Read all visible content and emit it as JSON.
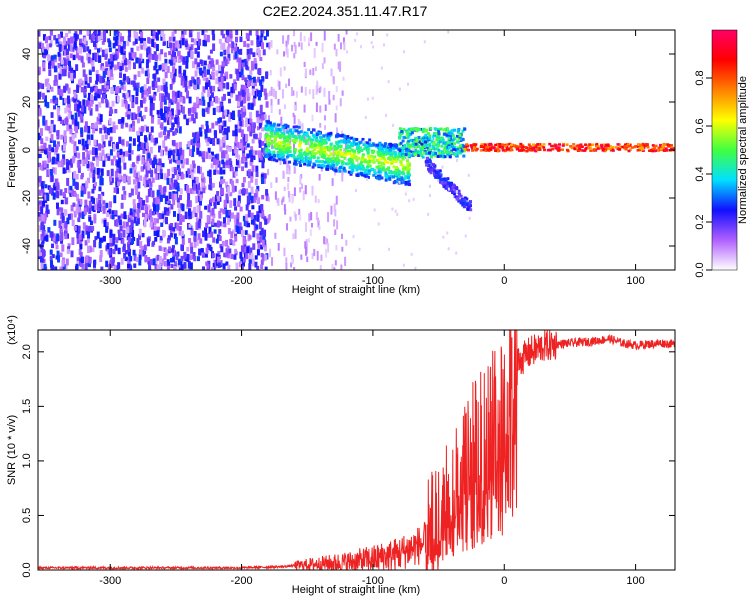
{
  "title": "C2E2.2024.351.11.47.R17",
  "chart_data": [
    {
      "type": "heatmap",
      "xlabel": "Height of straight line (km)",
      "ylabel": "Frequency (Hz)",
      "xlim": [
        -355,
        130
      ],
      "ylim": [
        -50,
        50
      ],
      "xticks": [
        -300,
        -200,
        -100,
        0,
        100
      ],
      "yticks": [
        -40,
        -20,
        0,
        20,
        40
      ],
      "colorbar": {
        "label": "Normalized spectral amplitude",
        "range": [
          0,
          1
        ],
        "ticks": [
          "0.0",
          "0.2",
          "0.4",
          "0.6",
          "0.8"
        ],
        "colors": [
          "#ffffff",
          "#b060ff",
          "#1010ff",
          "#00e0ff",
          "#40ff40",
          "#ffff00",
          "#ff8000",
          "#ff0000",
          "#ff0066"
        ]
      },
      "regions": [
        {
          "x_range": [
            -355,
            -180
          ],
          "y_range": [
            -50,
            50
          ],
          "level": 0.25
        },
        {
          "x_range": [
            -180,
            -125
          ],
          "y_range": [
            -50,
            50
          ],
          "level": 0.08
        },
        {
          "x_range": [
            -180,
            -80
          ],
          "y_center": [
            4,
            -8
          ],
          "level": 0.55
        },
        {
          "x_range": [
            -80,
            -30
          ],
          "y_center": [
            3,
            -20
          ],
          "level": 0.55
        },
        {
          "x_range": [
            -30,
            130
          ],
          "y_center": 1,
          "level": 0.95
        }
      ]
    },
    {
      "type": "line",
      "xlabel": "Height of straight line (km)",
      "ylabel": "SNR (10 * v/v)",
      "y_multiplier": "(x10⁴)",
      "xlim": [
        -355,
        130
      ],
      "ylim": [
        0,
        2.2
      ],
      "xticks": [
        -300,
        -200,
        -100,
        0,
        100
      ],
      "yticks": [
        "0.0",
        "0.5",
        "1.0",
        "1.5",
        "2.0"
      ],
      "color": "#ee2222",
      "series": [
        {
          "x": [
            -355,
            -300,
            -250,
            -200,
            -170,
            -150,
            -120,
            -100,
            -80,
            -60,
            -50,
            -40,
            -35,
            -30,
            -25,
            -20,
            -15,
            -10,
            -5,
            0,
            5,
            10,
            20,
            30,
            40,
            50,
            60,
            70,
            80,
            90,
            100,
            110,
            120,
            130
          ],
          "y": [
            0.02,
            0.02,
            0.02,
            0.02,
            0.03,
            0.05,
            0.07,
            0.1,
            0.15,
            0.25,
            0.4,
            0.7,
            0.9,
            1.0,
            1.1,
            1.2,
            1.3,
            1.4,
            1.55,
            1.7,
            1.8,
            1.9,
            2.0,
            2.05,
            2.07,
            2.08,
            2.09,
            2.1,
            2.12,
            2.08,
            2.06,
            2.07,
            2.08,
            2.07
          ]
        }
      ]
    }
  ]
}
